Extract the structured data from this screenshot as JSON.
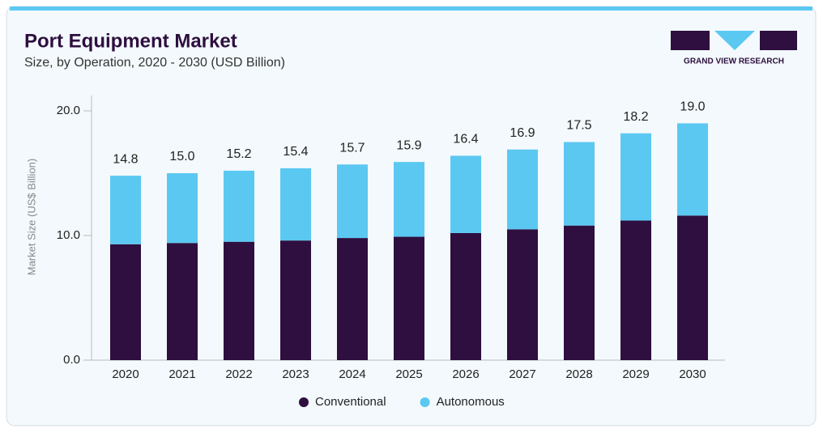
{
  "chart_data": {
    "type": "stacked_bar",
    "title": "Port Equipment Market",
    "subtitle": "Size, by Operation, 2020 - 2030 (USD Billion)",
    "brand": "GRAND VIEW RESEARCH",
    "y_label": "Market Size (US$ Billion)",
    "categories": [
      "2020",
      "2021",
      "2022",
      "2023",
      "2024",
      "2025",
      "2026",
      "2027",
      "2028",
      "2029",
      "2030"
    ],
    "series": [
      {
        "name": "Conventional",
        "color": "#2e0f3f",
        "values": [
          9.3,
          9.4,
          9.5,
          9.6,
          9.8,
          9.9,
          10.2,
          10.5,
          10.8,
          11.2,
          11.6
        ]
      },
      {
        "name": "Autonomous",
        "color": "#5bc8f2",
        "values": [
          5.5,
          5.6,
          5.7,
          5.8,
          5.9,
          6.0,
          6.2,
          6.4,
          6.7,
          7.0,
          7.4
        ]
      }
    ],
    "totals": [
      14.8,
      15.0,
      15.2,
      15.4,
      15.7,
      15.9,
      16.4,
      16.9,
      17.5,
      18.2,
      19.0
    ],
    "total_labels": [
      "14.8",
      "15.0",
      "15.2",
      "15.4",
      "15.7",
      "15.9",
      "16.4",
      "16.9",
      "17.5",
      "18.2",
      "19.0"
    ],
    "ylim": [
      0,
      20
    ],
    "yticks": [
      {
        "value": 0,
        "label": "0.0"
      },
      {
        "value": 10,
        "label": "10.0"
      },
      {
        "value": 20,
        "label": "20.0"
      }
    ],
    "legend": "bottom"
  }
}
